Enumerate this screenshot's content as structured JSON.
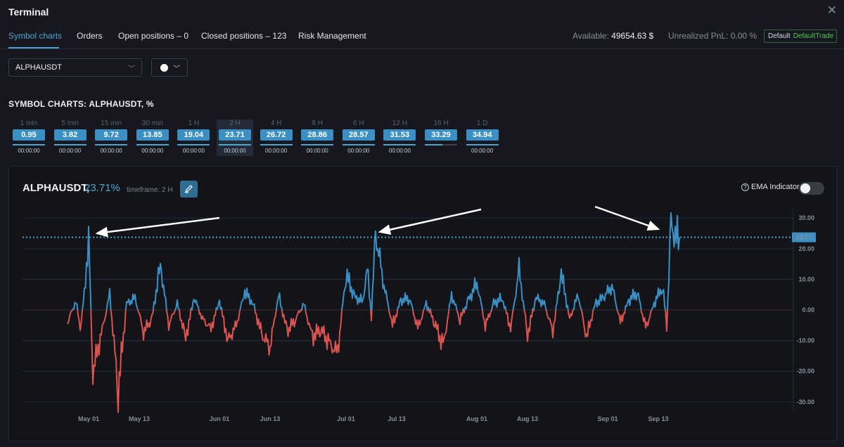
{
  "window": {
    "title": "Terminal"
  },
  "tabs": [
    {
      "label": "Symbol charts",
      "active": true
    },
    {
      "label": "Orders",
      "active": false
    },
    {
      "label": "Open positions – 0",
      "active": false
    },
    {
      "label": "Closed positions – 123",
      "active": false
    },
    {
      "label": "Risk Management",
      "active": false
    }
  ],
  "account": {
    "available_label": "Available:",
    "available_value": "49654.63 $",
    "pnl_label": "Unrealized PnL:",
    "pnl_value": "0.00 %",
    "profile_label": "Default",
    "profile_value": "DefaultTrade"
  },
  "symbol_select": {
    "value": "ALPHAUSDT"
  },
  "color_select": {
    "color": "#ffffff"
  },
  "section_title": "SYMBOL CHARTS: ALPHAUSDT, %",
  "timeframes": [
    {
      "label": "1 min",
      "value": "0.95",
      "time": "00:00:00",
      "fill": 1.0,
      "selected": false
    },
    {
      "label": "5 min",
      "value": "3.82",
      "time": "00:00:00",
      "fill": 1.0,
      "selected": false
    },
    {
      "label": "15 min",
      "value": "9.72",
      "time": "00:00:00",
      "fill": 1.0,
      "selected": false
    },
    {
      "label": "30 min",
      "value": "13.85",
      "time": "00:00:00",
      "fill": 1.0,
      "selected": false
    },
    {
      "label": "1 H",
      "value": "19.04",
      "time": "00:00:00",
      "fill": 1.0,
      "selected": false
    },
    {
      "label": "2 H",
      "value": "23.71",
      "time": "00:00:00",
      "fill": 1.0,
      "selected": true
    },
    {
      "label": "4 H",
      "value": "26.72",
      "time": "00:00:00",
      "fill": 1.0,
      "selected": false
    },
    {
      "label": "8 H",
      "value": "28.86",
      "time": "00:00:00",
      "fill": 1.0,
      "selected": false
    },
    {
      "label": "6 H",
      "value": "28.57",
      "time": "00:00:00",
      "fill": 1.0,
      "selected": false
    },
    {
      "label": "12 H",
      "value": "31.53",
      "time": "00:00:00",
      "fill": 1.0,
      "selected": false
    },
    {
      "label": "16 H",
      "value": "33.29",
      "time": "",
      "fill": 0.55,
      "selected": false
    },
    {
      "label": "1 D",
      "value": "34.94",
      "time": "00:00:00",
      "fill": 1.0,
      "selected": false
    }
  ],
  "chart_header": {
    "symbol": "ALPHAUSDT,",
    "percent": "23.71%",
    "timeframe": "timeframe: 2 H",
    "ema_label": "EMA Indicator",
    "ema_on": false
  },
  "chart_data": {
    "type": "area",
    "positive_color": "#3b8fc2",
    "negative_color": "#d9534f",
    "current_value": 23.71,
    "current_label": "23.71",
    "ylim": [
      -32,
      32
    ],
    "yticks": [
      30,
      20,
      10,
      0,
      -10,
      -20,
      -30
    ],
    "ytick_labels": [
      "30.00",
      "20.00",
      "10.00",
      "0.00",
      "-10.00",
      "-20.00",
      "-30.00"
    ],
    "x_range": [
      "Apr 26",
      "Sep 18"
    ],
    "xticks": [
      {
        "date": "May 01",
        "label": "May 01"
      },
      {
        "date": "May 13",
        "label": "May 13"
      },
      {
        "date": "Jun 01",
        "label": "Jun 01"
      },
      {
        "date": "Jun 13",
        "label": "Jun 13"
      },
      {
        "date": "Jul 01",
        "label": "Jul 01"
      },
      {
        "date": "Jul 13",
        "label": "Jul 13"
      },
      {
        "date": "Aug 01",
        "label": "Aug 01"
      },
      {
        "date": "Aug 13",
        "label": "Aug 13"
      },
      {
        "date": "Sep 01",
        "label": "Sep 01"
      },
      {
        "date": "Sep 13",
        "label": "Sep 13"
      }
    ],
    "series": [
      {
        "x": [
          "Apr 26",
          "Apr 28",
          "Apr 29",
          "Apr 30",
          "May 01",
          "May 02",
          "May 04",
          "May 06",
          "May 08",
          "May 10",
          "May 12",
          "May 14",
          "May 16",
          "May 18",
          "May 20",
          "May 22",
          "May 24",
          "May 26",
          "May 28",
          "May 30",
          "Jun 01",
          "Jun 03",
          "Jun 05",
          "Jun 07",
          "Jun 09",
          "Jun 11",
          "Jun 13",
          "Jun 15",
          "Jun 17",
          "Jun 19",
          "Jun 21",
          "Jun 23",
          "Jun 25",
          "Jun 27",
          "Jun 29",
          "Jul 01",
          "Jul 03",
          "Jul 05",
          "Jul 06",
          "Jul 07",
          "Jul 08",
          "Jul 10",
          "Jul 12",
          "Jul 14",
          "Jul 16",
          "Jul 18",
          "Jul 20",
          "Jul 22",
          "Jul 24",
          "Jul 26",
          "Jul 28",
          "Jul 30",
          "Aug 01",
          "Aug 03",
          "Aug 05",
          "Aug 07",
          "Aug 09",
          "Aug 11",
          "Aug 13",
          "Aug 15",
          "Aug 17",
          "Aug 19",
          "Aug 21",
          "Aug 23",
          "Aug 25",
          "Aug 27",
          "Aug 29",
          "Aug 31",
          "Sep 02",
          "Sep 04",
          "Sep 06",
          "Sep 08",
          "Sep 10",
          "Sep 12",
          "Sep 14",
          "Sep 15",
          "Sep 16",
          "Sep 17",
          "Sep 18"
        ],
        "y": [
          -4,
          3,
          -6,
          5,
          24,
          -20,
          -8,
          5,
          -26,
          2,
          4,
          -7,
          -3,
          15,
          -5,
          2,
          -9,
          4,
          -3,
          -6,
          3,
          -10,
          -5,
          6,
          2,
          -8,
          -12,
          5,
          -7,
          -3,
          2,
          -9,
          -6,
          -11,
          -14,
          12,
          4,
          3,
          14,
          -2,
          25,
          8,
          -5,
          3,
          4,
          -6,
          2,
          -4,
          -12,
          5,
          -3,
          3,
          9,
          -5,
          2,
          4,
          -6,
          13,
          -8,
          4,
          2,
          -7,
          12,
          -3,
          5,
          -9,
          2,
          4,
          8,
          -4,
          3,
          6,
          -6,
          2,
          8,
          -5,
          28,
          24,
          23.71
        ]
      }
    ],
    "annotations": [
      "arrow pointing to May 01 spike",
      "arrow pointing to Jul 08 spike",
      "arrow pointing to Sep 16 spike"
    ]
  }
}
